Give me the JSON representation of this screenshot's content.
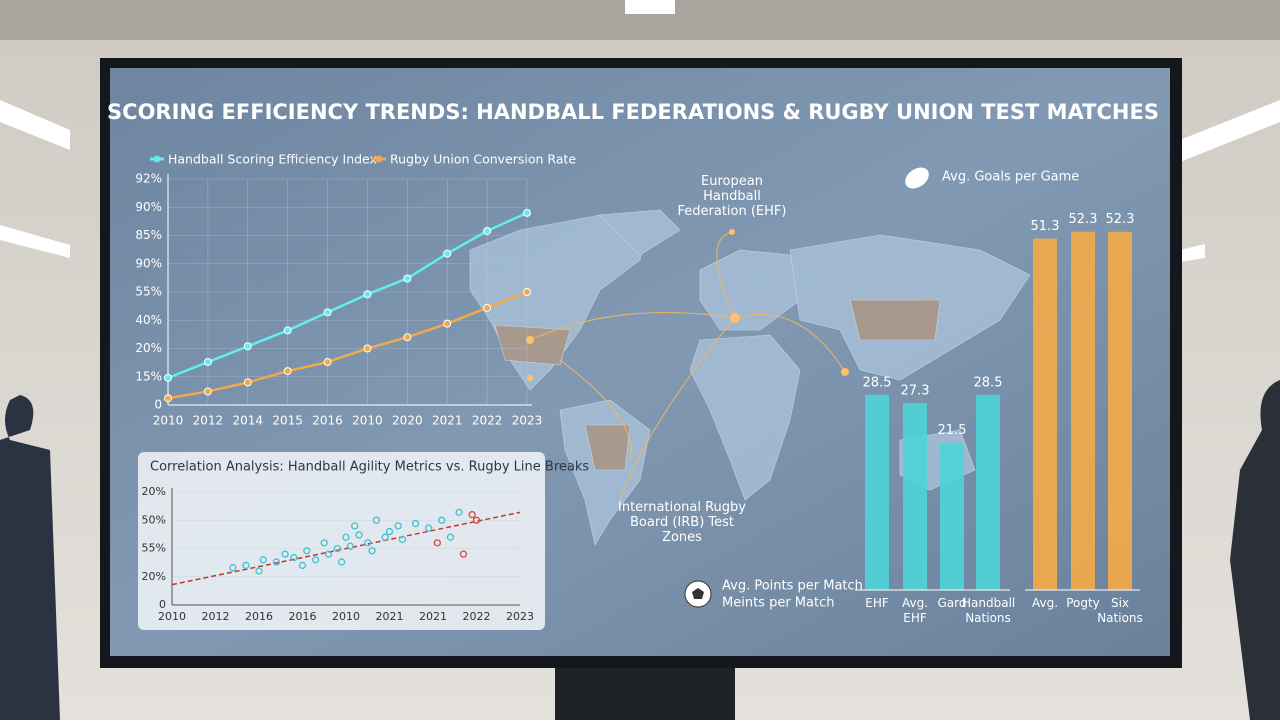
{
  "title": "SCORING EFFICIENCY TRENDS: HANDBALL FEDERATIONS & RUGBY UNION TEST MATCHES",
  "map": {
    "labels": [
      "European Handball Federation (EHF)",
      "International Rugby Board (IRB) Test Zones"
    ]
  },
  "chart_data": [
    {
      "type": "line",
      "categories": [
        "2010",
        "2012",
        "2014",
        "2015",
        "2016",
        "2010",
        "2020",
        "2021",
        "2022",
        "2023"
      ],
      "y_labels": [
        "92%",
        "90%",
        "85%",
        "90%",
        "55%",
        "40%",
        "20%",
        "15%",
        "0"
      ],
      "ylim": [
        0,
        100
      ],
      "grid": true,
      "series": [
        {
          "name": "Handball Scoring Efficiency Index",
          "color": "#62eef0",
          "values": [
            12,
            19,
            26,
            33,
            41,
            49,
            56,
            67,
            77,
            85
          ]
        },
        {
          "name": "Rugby Union Conversion Rate",
          "color": "#f2a94a",
          "values": [
            3,
            6,
            10,
            15,
            19,
            25,
            30,
            36,
            43,
            50
          ]
        }
      ]
    },
    {
      "type": "scatter",
      "title": "Correlation Analysis: Handball Agility Metrics vs. Rugby Line Breaks",
      "x_labels": [
        "2010",
        "2012",
        "2016",
        "2016",
        "2010",
        "2021",
        "2021",
        "2022",
        "2023"
      ],
      "y_labels": [
        "20%",
        "50%",
        "55%",
        "20%",
        "0"
      ],
      "xlim": [
        0,
        8
      ],
      "ylim": [
        0,
        100
      ],
      "trend": {
        "color": "#c0392b",
        "values": [
          18,
          82
        ]
      },
      "series": [
        {
          "color": "#3fc1cf",
          "x": [
            1.4,
            1.7,
            2.1,
            2.0,
            2.4,
            2.6,
            2.8,
            3.0,
            3.1,
            3.3,
            3.5,
            3.6,
            3.8,
            3.9,
            4.0,
            4.1,
            4.2,
            4.3,
            4.5,
            4.6,
            4.7,
            4.9,
            5.0,
            5.2,
            5.3,
            5.6,
            5.9,
            6.2,
            6.4,
            6.6
          ],
          "values": [
            33,
            35,
            40,
            30,
            38,
            45,
            42,
            35,
            48,
            40,
            55,
            45,
            50,
            38,
            60,
            52,
            70,
            62,
            55,
            48,
            75,
            60,
            65,
            70,
            58,
            72,
            68,
            75,
            60,
            82
          ]
        },
        {
          "color": "#d84a3a",
          "x": [
            6.1,
            6.7,
            6.9,
            7.0
          ],
          "values": [
            55,
            45,
            80,
            75
          ]
        }
      ]
    },
    {
      "type": "bar",
      "categories": [
        "EHF",
        "Avg. EHF",
        "Gard",
        "Handball Nations",
        "Avg.",
        "Pogty",
        "Six Nations"
      ],
      "values": [
        28.5,
        27.3,
        21.5,
        28.5,
        51.3,
        52.3,
        52.3
      ],
      "colors": [
        "#4fd3d8",
        "#4fd3d8",
        "#4fd3d8",
        "#4fd3d8",
        "#f2a94a",
        "#f2a94a",
        "#f2a94a"
      ],
      "ylim": [
        0,
        60
      ],
      "legend": [
        "Avg. Goals per Game",
        "Avg. Points per Match",
        "Meints per Match"
      ]
    }
  ]
}
